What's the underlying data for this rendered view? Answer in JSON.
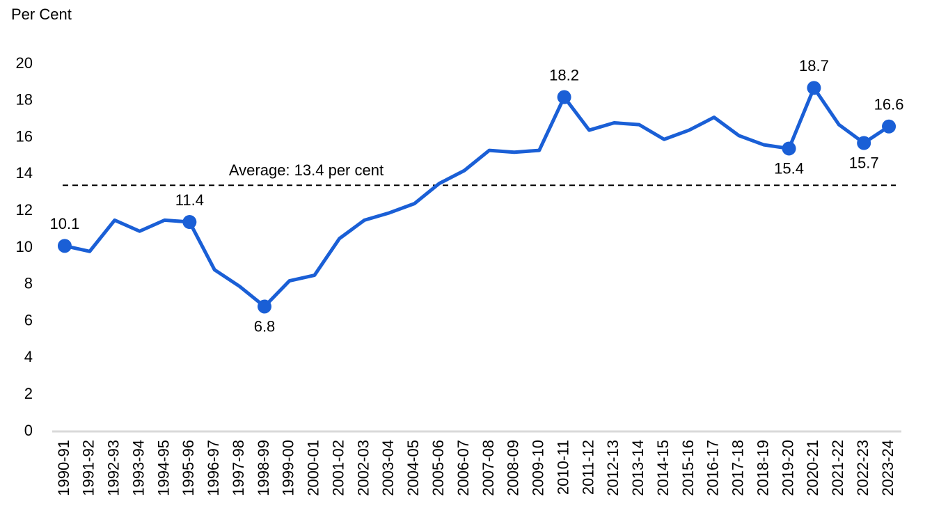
{
  "chart_data": {
    "type": "line",
    "y_label": "Per Cent",
    "categories": [
      "1990-91",
      "1991-92",
      "1992-93",
      "1993-94",
      "1994-95",
      "1995-96",
      "1996-97",
      "1997-98",
      "1998-99",
      "1999-00",
      "2000-01",
      "2001-02",
      "2002-03",
      "2003-04",
      "2004-05",
      "2005-06",
      "2006-07",
      "2007-08",
      "2008-09",
      "2009-10",
      "2010-11",
      "2011-12",
      "2012-13",
      "2013-14",
      "2014-15",
      "2015-16",
      "2016-17",
      "2017-18",
      "2018-19",
      "2019-20",
      "2020-21",
      "2021-22",
      "2022-23",
      "2023-24"
    ],
    "series": [
      {
        "name": "Per Cent",
        "color": "#1a5fd6",
        "values": [
          10.1,
          9.8,
          11.5,
          10.9,
          11.5,
          11.4,
          8.8,
          7.9,
          6.8,
          8.2,
          8.5,
          10.5,
          11.5,
          11.9,
          12.4,
          13.5,
          14.2,
          15.3,
          15.2,
          15.3,
          18.2,
          16.4,
          16.8,
          16.7,
          15.9,
          16.4,
          17.1,
          16.1,
          15.6,
          15.4,
          18.7,
          16.7,
          15.7,
          16.6
        ],
        "value_labels": [
          "10.1",
          null,
          null,
          null,
          null,
          "11.4",
          null,
          null,
          "6.8",
          null,
          null,
          null,
          null,
          null,
          null,
          null,
          null,
          null,
          null,
          null,
          "18.2",
          null,
          null,
          null,
          null,
          null,
          null,
          null,
          null,
          "15.4",
          "18.7",
          null,
          "15.7",
          "16.6"
        ]
      }
    ],
    "reference_line": {
      "value": 13.4,
      "label": "Average: 13.4 per cent"
    },
    "ylim": [
      0,
      20
    ],
    "yticks": [
      0,
      2,
      4,
      6,
      8,
      10,
      12,
      14,
      16,
      18,
      20
    ],
    "grid": false
  }
}
